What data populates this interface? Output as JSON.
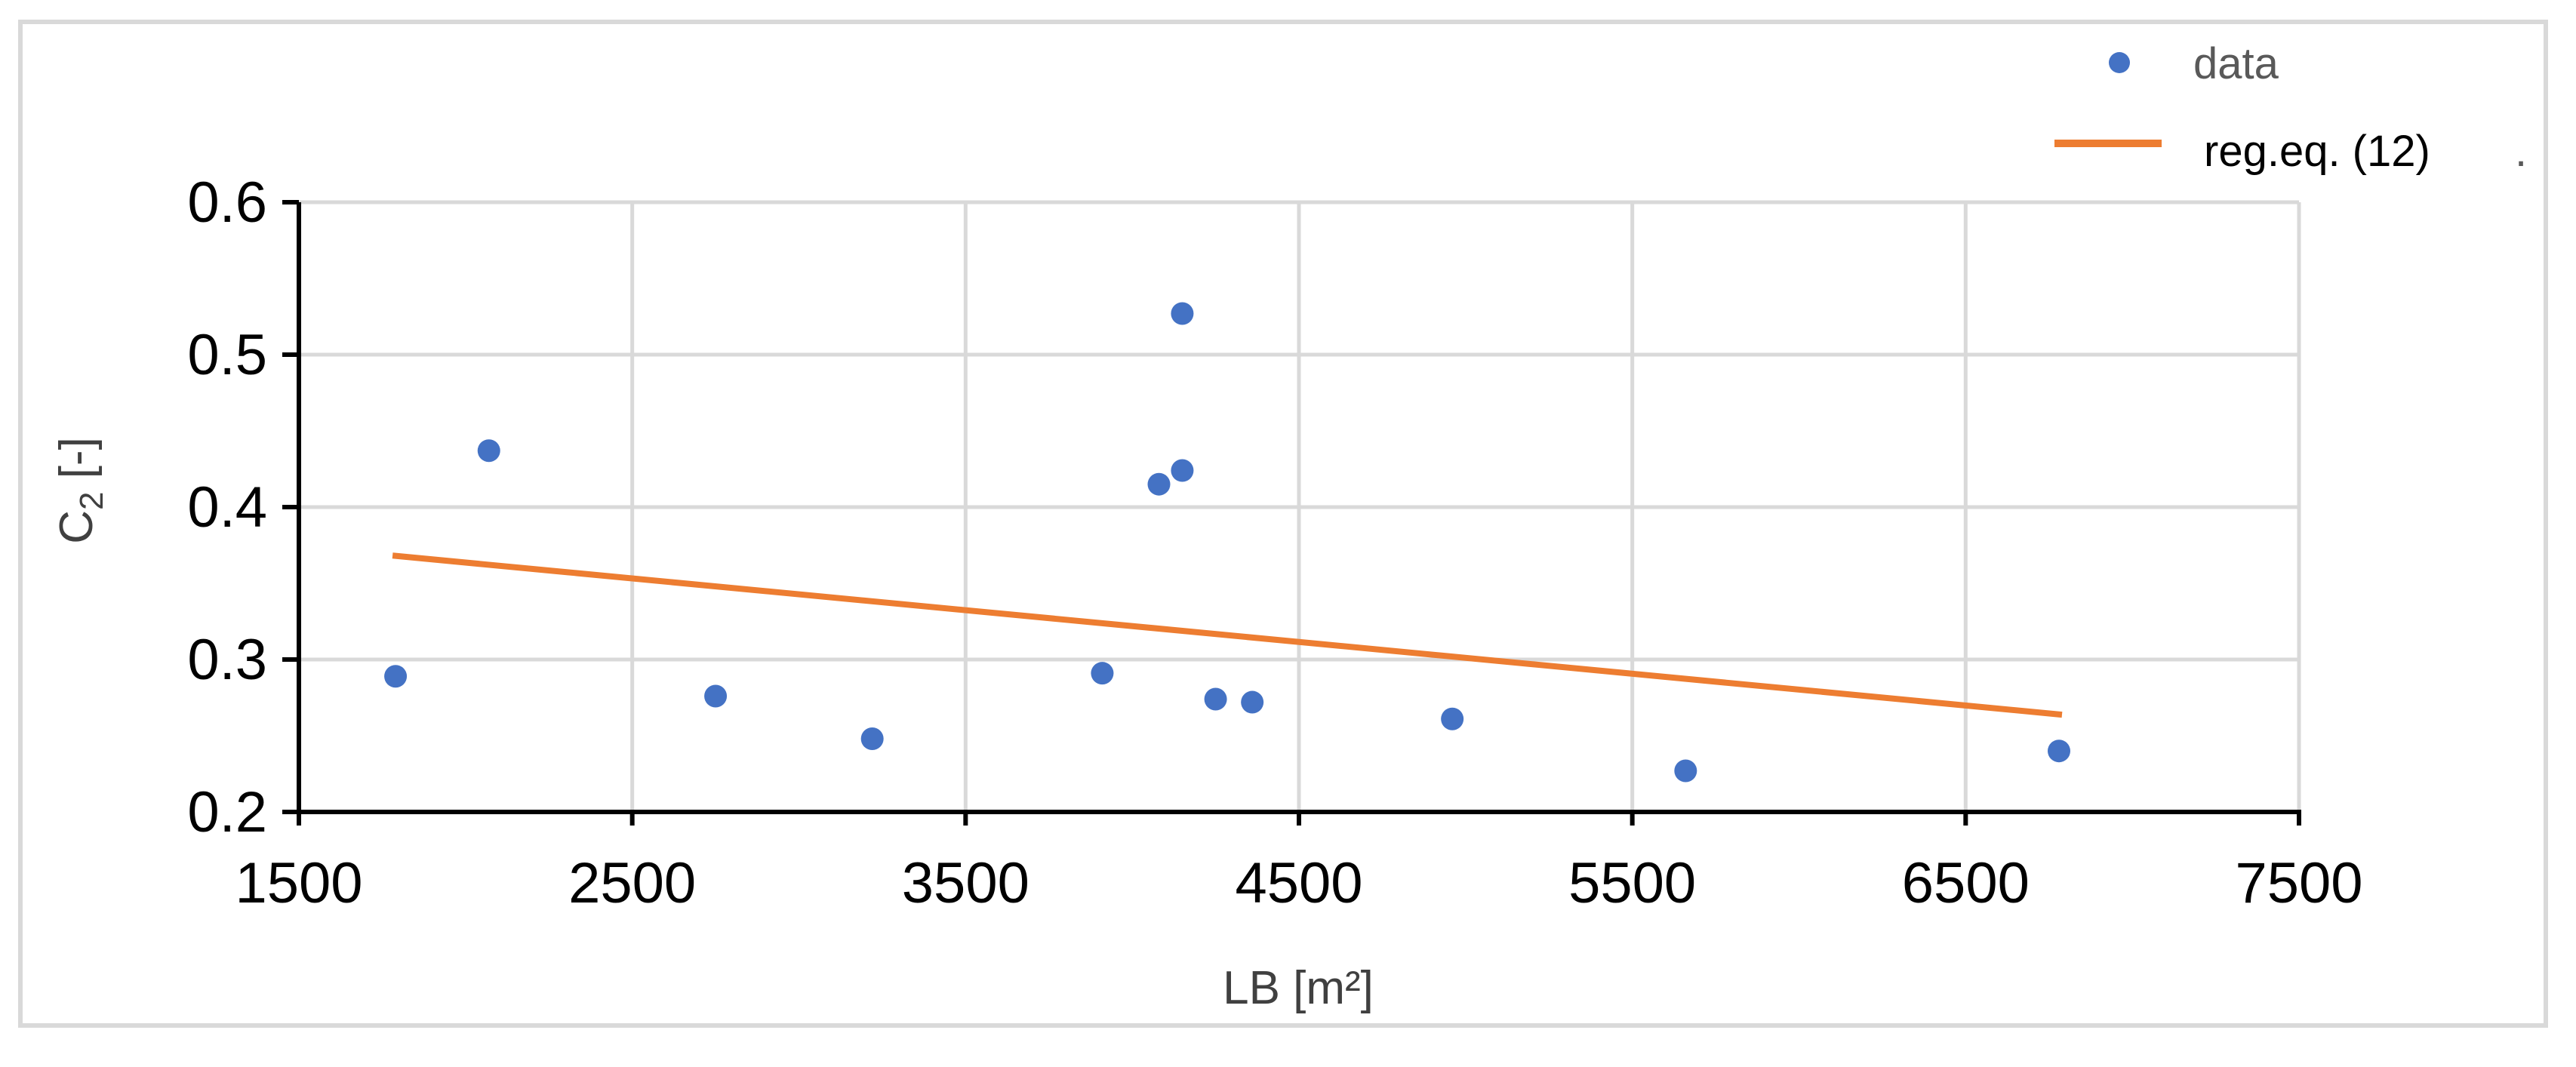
{
  "chart_data": {
    "type": "scatter",
    "title": "",
    "xlabel": "LB [m²]",
    "ylabel_main": "C",
    "ylabel_sub": "2",
    "ylabel_suffix": " [-]",
    "xlim": [
      1500,
      7500
    ],
    "ylim": [
      0.2,
      0.6
    ],
    "x_ticks": [
      1500,
      2500,
      3500,
      4500,
      5500,
      6500,
      7500
    ],
    "y_ticks": [
      0.2,
      0.3,
      0.4,
      0.5,
      0.6
    ],
    "x_tick_labels": [
      "1500",
      "2500",
      "3500",
      "4500",
      "5500",
      "6500",
      "7500"
    ],
    "y_tick_labels": [
      "0.2",
      "0.3",
      "0.4",
      "0.5",
      "0.6"
    ],
    "grid": true,
    "legend_position": "top-right",
    "series": [
      {
        "name": "data",
        "kind": "scatter",
        "color": "#4472C4",
        "points": [
          {
            "x": 1790,
            "y": 0.289
          },
          {
            "x": 2070,
            "y": 0.437
          },
          {
            "x": 2750,
            "y": 0.276
          },
          {
            "x": 3220,
            "y": 0.248
          },
          {
            "x": 3910,
            "y": 0.291
          },
          {
            "x": 4080,
            "y": 0.415
          },
          {
            "x": 4150,
            "y": 0.424
          },
          {
            "x": 4150,
            "y": 0.527
          },
          {
            "x": 4250,
            "y": 0.274
          },
          {
            "x": 4360,
            "y": 0.272
          },
          {
            "x": 4960,
            "y": 0.261
          },
          {
            "x": 5660,
            "y": 0.227
          },
          {
            "x": 6780,
            "y": 0.24
          }
        ]
      },
      {
        "name": "reg.eq. (12)",
        "kind": "line",
        "color": "#ED7D31",
        "points": [
          {
            "x": 1790,
            "y": 0.368
          },
          {
            "x": 6780,
            "y": 0.264
          }
        ]
      }
    ],
    "legend_trailing_mark": "."
  }
}
